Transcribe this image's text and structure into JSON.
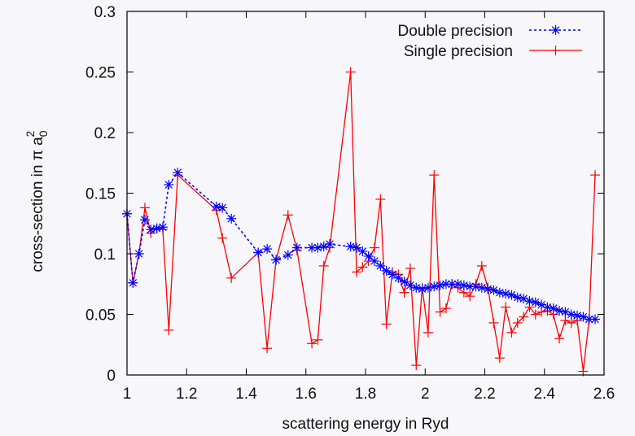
{
  "chart_data": {
    "type": "line",
    "title": "",
    "xlabel": "scattering energy in Ryd",
    "ylabel": "cross-section in π a",
    "ylabel_sub": "0",
    "ylabel_sup": "2",
    "xlim": [
      1.0,
      2.6
    ],
    "ylim": [
      0,
      0.3
    ],
    "xticks": [
      1,
      1.2,
      1.4,
      1.6,
      1.8,
      2,
      2.2,
      2.4,
      2.6
    ],
    "xtick_labels": [
      "1",
      "1.2",
      "1.4",
      "1.6",
      "1.8",
      "2",
      "2.2",
      "2.4",
      "2.6"
    ],
    "yticks": [
      0,
      0.05,
      0.1,
      0.15,
      0.2,
      0.25,
      0.3
    ],
    "ytick_labels": [
      "0",
      "0.05",
      "0.1",
      "0.15",
      "0.2",
      "0.25",
      "0.3"
    ],
    "grid": false,
    "legend_position": "top-right",
    "series": [
      {
        "name": "Double precision",
        "color": "#0000ff",
        "line_style": "dotted",
        "marker": "asterisk",
        "x": [
          1.0,
          1.02,
          1.04,
          1.06,
          1.08,
          1.1,
          1.12,
          1.14,
          1.17,
          1.3,
          1.32,
          1.35,
          1.44,
          1.47,
          1.5,
          1.54,
          1.57,
          1.62,
          1.64,
          1.66,
          1.68,
          1.75,
          1.77,
          1.79,
          1.81,
          1.83,
          1.85,
          1.87,
          1.89,
          1.91,
          1.93,
          1.95,
          1.97,
          1.99,
          2.01,
          2.03,
          2.05,
          2.07,
          2.09,
          2.11,
          2.13,
          2.15,
          2.17,
          2.19,
          2.21,
          2.23,
          2.25,
          2.27,
          2.29,
          2.31,
          2.33,
          2.35,
          2.37,
          2.39,
          2.41,
          2.43,
          2.45,
          2.47,
          2.49,
          2.51,
          2.53,
          2.55,
          2.57
        ],
        "y": [
          0.133,
          0.076,
          0.1,
          0.128,
          0.12,
          0.121,
          0.122,
          0.157,
          0.167,
          0.139,
          0.138,
          0.129,
          0.101,
          0.104,
          0.095,
          0.099,
          0.105,
          0.105,
          0.105,
          0.106,
          0.108,
          0.106,
          0.105,
          0.102,
          0.098,
          0.094,
          0.09,
          0.086,
          0.083,
          0.08,
          0.077,
          0.074,
          0.072,
          0.071,
          0.072,
          0.073,
          0.074,
          0.075,
          0.075,
          0.075,
          0.074,
          0.073,
          0.073,
          0.072,
          0.071,
          0.07,
          0.068,
          0.067,
          0.066,
          0.064,
          0.063,
          0.061,
          0.06,
          0.058,
          0.056,
          0.055,
          0.053,
          0.052,
          0.05,
          0.049,
          0.048,
          0.046,
          0.046
        ]
      },
      {
        "name": "Single precision",
        "color": "#ff0000",
        "line_style": "solid",
        "marker": "plus",
        "x": [
          1.0,
          1.02,
          1.04,
          1.06,
          1.08,
          1.1,
          1.12,
          1.14,
          1.17,
          1.3,
          1.32,
          1.35,
          1.44,
          1.47,
          1.5,
          1.54,
          1.57,
          1.62,
          1.64,
          1.66,
          1.68,
          1.75,
          1.77,
          1.79,
          1.81,
          1.83,
          1.85,
          1.87,
          1.89,
          1.91,
          1.93,
          1.95,
          1.97,
          1.99,
          2.01,
          2.03,
          2.05,
          2.07,
          2.09,
          2.11,
          2.13,
          2.15,
          2.17,
          2.19,
          2.21,
          2.23,
          2.25,
          2.27,
          2.29,
          2.31,
          2.33,
          2.35,
          2.37,
          2.39,
          2.41,
          2.43,
          2.45,
          2.47,
          2.49,
          2.51,
          2.53,
          2.55,
          2.57
        ],
        "y": [
          0.133,
          0.076,
          0.1,
          0.138,
          0.117,
          0.121,
          0.12,
          0.037,
          0.165,
          0.136,
          0.113,
          0.08,
          0.101,
          0.022,
          0.095,
          0.132,
          0.103,
          0.026,
          0.029,
          0.09,
          0.105,
          0.25,
          0.085,
          0.089,
          0.094,
          0.105,
          0.145,
          0.042,
          0.085,
          0.083,
          0.068,
          0.088,
          0.008,
          0.072,
          0.035,
          0.165,
          0.052,
          0.055,
          0.075,
          0.072,
          0.068,
          0.065,
          0.075,
          0.09,
          0.072,
          0.043,
          0.014,
          0.056,
          0.035,
          0.043,
          0.048,
          0.056,
          0.05,
          0.052,
          0.053,
          0.05,
          0.03,
          0.045,
          0.043,
          0.045,
          0.003,
          0.046,
          0.165
        ]
      }
    ]
  }
}
